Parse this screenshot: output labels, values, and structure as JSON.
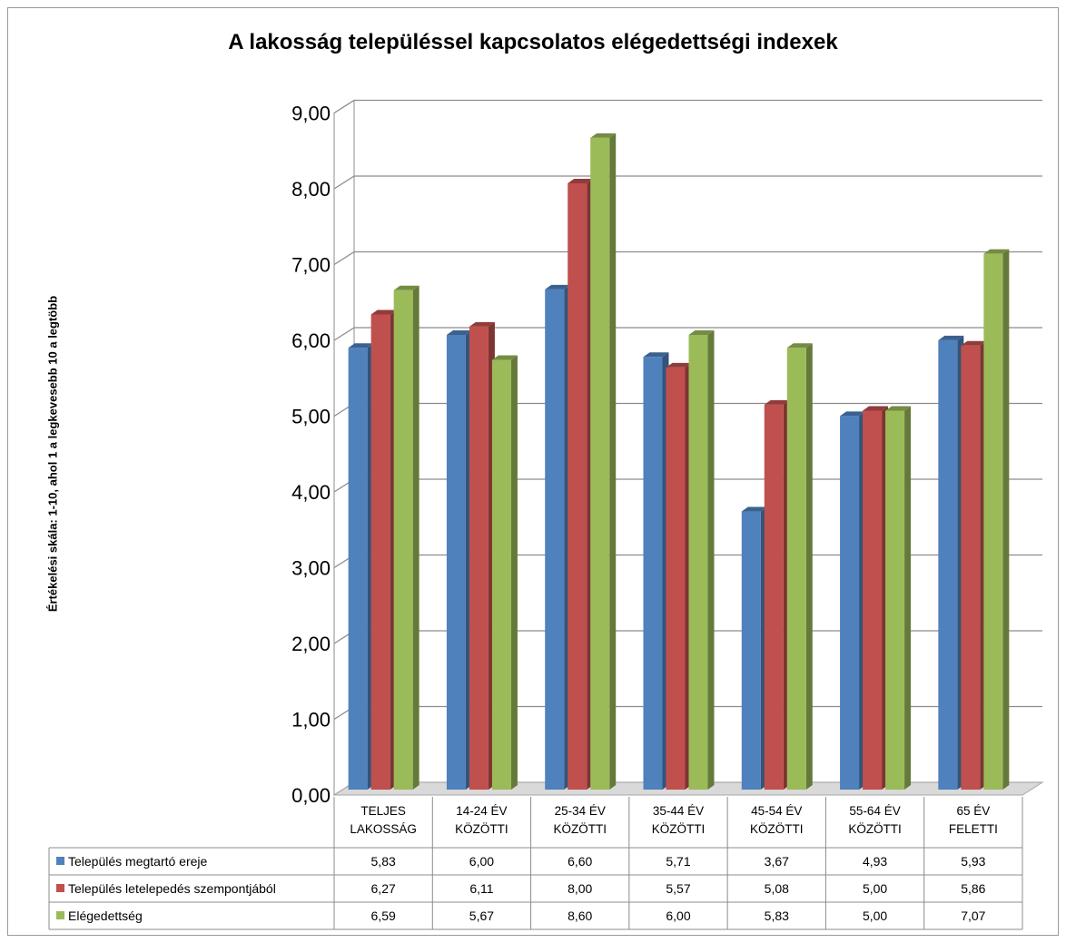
{
  "chart_data": {
    "type": "bar",
    "title": "A lakosság településsel kapcsolatos elégedettségi indexek",
    "ylabel": "Értékelési skála: 1-10, ahol 1 a legkevesebb 10 a legtöbb",
    "xlabel": "",
    "ylim": [
      0,
      9
    ],
    "yticks": [
      "0,00",
      "1,00",
      "2,00",
      "3,00",
      "4,00",
      "5,00",
      "6,00",
      "7,00",
      "8,00",
      "9,00"
    ],
    "categories": [
      [
        "TELJES",
        "LAKOSSÁG"
      ],
      [
        "14-24 ÉV",
        "KÖZÖTTI"
      ],
      [
        "25-34 ÉV",
        "KÖZÖTTI"
      ],
      [
        "35-44 ÉV",
        "KÖZÖTTI"
      ],
      [
        "45-54 ÉV",
        "KÖZÖTTI"
      ],
      [
        "55-64 ÉV",
        "KÖZÖTTI"
      ],
      [
        "65 ÉV",
        "FELETTI"
      ]
    ],
    "series": [
      {
        "name": "Település megtartó ereje",
        "color": "#4f81bd",
        "values": [
          5.83,
          6.0,
          6.6,
          5.71,
          3.67,
          4.93,
          5.93
        ],
        "labels": [
          "5,83",
          "6,00",
          "6,60",
          "5,71",
          "3,67",
          "4,93",
          "5,93"
        ]
      },
      {
        "name": "Település letelepedés szempontjából",
        "color": "#c0504d",
        "values": [
          6.27,
          6.11,
          8.0,
          5.57,
          5.08,
          5.0,
          5.86
        ],
        "labels": [
          "6,27",
          "6,11",
          "8,00",
          "5,57",
          "5,08",
          "5,00",
          "5,86"
        ]
      },
      {
        "name": "Elégedettség",
        "color": "#9bbb59",
        "values": [
          6.59,
          5.67,
          8.6,
          6.0,
          5.83,
          5.0,
          7.07
        ],
        "labels": [
          "6,59",
          "5,67",
          "8,60",
          "6,00",
          "5,83",
          "5,00",
          "7,07"
        ]
      }
    ],
    "legend": "data-table",
    "grid": true,
    "style": "3d-columns"
  }
}
